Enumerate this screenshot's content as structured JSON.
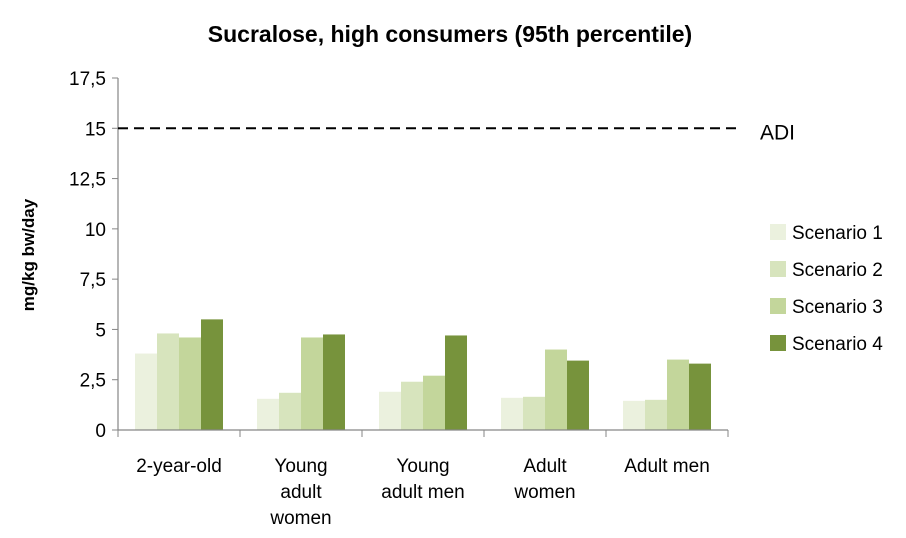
{
  "chart_data": {
    "type": "bar",
    "title": "Sucralose, high consumers (95th percentile)",
    "xlabel": "",
    "ylabel": "mg/kg bw/day",
    "ylim": [
      0,
      17.5
    ],
    "yticks": [
      "0",
      "2,5",
      "5",
      "7,5",
      "10",
      "12,5",
      "15",
      "17,5"
    ],
    "ytick_values": [
      0,
      2.5,
      5,
      7.5,
      10,
      12.5,
      15,
      17.5
    ],
    "categories": [
      [
        "2-year-old"
      ],
      [
        "Young",
        "adult",
        "women"
      ],
      [
        "Young",
        "adult men"
      ],
      [
        "Adult",
        "women"
      ],
      [
        "Adult men"
      ]
    ],
    "series": [
      {
        "name": "Scenario 1",
        "color": "#EBF1DE",
        "values": [
          3.8,
          1.55,
          1.9,
          1.6,
          1.45
        ]
      },
      {
        "name": "Scenario 2",
        "color": "#D7E4BD",
        "values": [
          4.8,
          1.85,
          2.4,
          1.65,
          1.5
        ]
      },
      {
        "name": "Scenario 3",
        "color": "#C3D69B",
        "values": [
          4.6,
          4.6,
          2.7,
          4.0,
          3.5
        ]
      },
      {
        "name": "Scenario 4",
        "color": "#77933C",
        "values": [
          5.5,
          4.75,
          4.7,
          3.45,
          3.3
        ]
      }
    ],
    "reference_line": {
      "label": "ADI",
      "value": 15,
      "style": "dashed"
    },
    "legend_position": "right",
    "grid": false
  }
}
